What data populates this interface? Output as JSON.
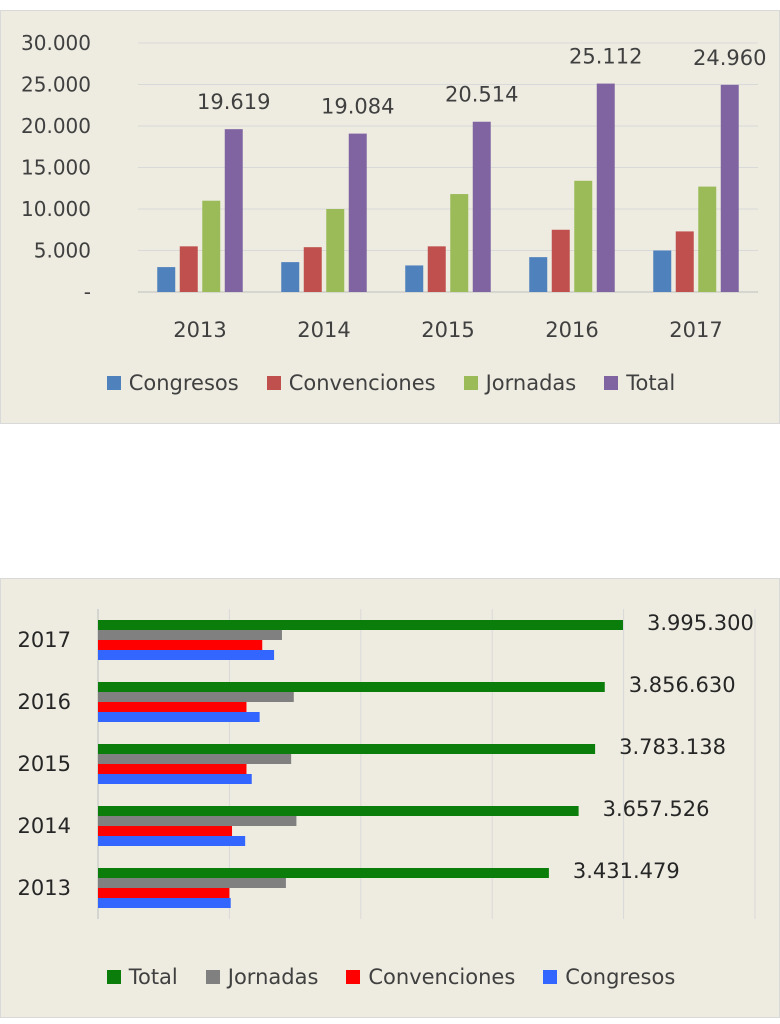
{
  "colors": {
    "panel_bg": "#eeece1",
    "grid": "#d9d9d9",
    "top_series": [
      "#4f81bd",
      "#c0504d",
      "#9bbb59",
      "#8064a2"
    ],
    "bottom_series": [
      "#0a7d0a",
      "#808080",
      "#ff0000",
      "#3366ff"
    ]
  },
  "chart_data": [
    {
      "type": "bar",
      "orientation": "vertical",
      "categories": [
        "2013",
        "2014",
        "2015",
        "2016",
        "2017"
      ],
      "series": [
        {
          "name": "Congresos",
          "values": [
            3000,
            3600,
            3200,
            4200,
            5000
          ]
        },
        {
          "name": "Convenciones",
          "values": [
            5500,
            5400,
            5500,
            7500,
            7300
          ]
        },
        {
          "name": "Jornadas",
          "values": [
            11000,
            10000,
            11800,
            13400,
            12700
          ]
        },
        {
          "name": "Total",
          "values": [
            19619,
            19084,
            20514,
            25112,
            24960
          ]
        }
      ],
      "total_labels": [
        "19.619",
        "19.084",
        "20.514",
        "25.112",
        "24.960"
      ],
      "ylim": [
        0,
        30000
      ],
      "y_ticks": [
        "-",
        "5.000",
        "10.000",
        "15.000",
        "20.000",
        "25.000",
        "30.000"
      ],
      "y_tick_values": [
        0,
        5000,
        10000,
        15000,
        20000,
        25000,
        30000
      ],
      "grid": true,
      "legend_position": "bottom"
    },
    {
      "type": "bar",
      "orientation": "horizontal",
      "categories": [
        "2013",
        "2014",
        "2015",
        "2016",
        "2017"
      ],
      "series": [
        {
          "name": "Total",
          "values": [
            3431479,
            3657526,
            3783138,
            3856630,
            3995300
          ]
        },
        {
          "name": "Jornadas",
          "values": [
            1430000,
            1510000,
            1470000,
            1490000,
            1400000
          ]
        },
        {
          "name": "Convenciones",
          "values": [
            1000000,
            1020000,
            1130000,
            1130000,
            1250000
          ]
        },
        {
          "name": "Congresos",
          "values": [
            1010000,
            1120000,
            1170000,
            1230000,
            1340000
          ]
        }
      ],
      "total_labels": [
        "3.431.479",
        "3.657.526",
        "3.783.138",
        "3.856.630",
        "3.995.300"
      ],
      "legend_order": [
        "Total",
        "Jornadas",
        "Convenciones",
        "Congresos"
      ],
      "xlim": [
        0,
        5000000
      ],
      "grid": true,
      "legend_position": "bottom"
    }
  ]
}
